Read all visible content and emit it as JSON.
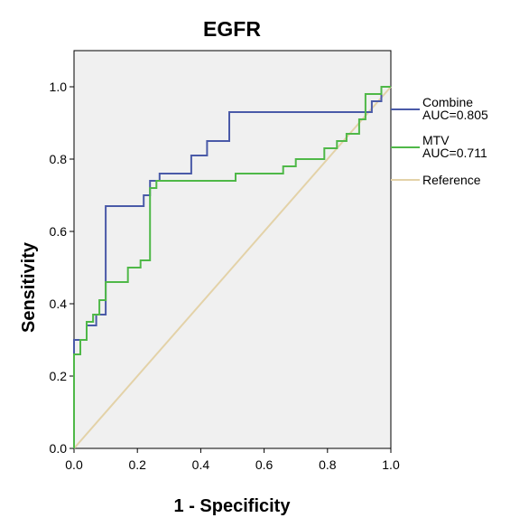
{
  "chart_data": {
    "type": "line",
    "title": "EGFR",
    "xlabel": "1 - Specificity",
    "ylabel": "Sensitivity",
    "xlim": [
      0,
      1
    ],
    "ylim": [
      0,
      1.1
    ],
    "xticks": [
      "0.0",
      "0.2",
      "0.4",
      "0.6",
      "0.8",
      "1.0"
    ],
    "yticks": [
      "0.0",
      "0.2",
      "0.4",
      "0.6",
      "0.8",
      "1.0"
    ],
    "grid": false,
    "background": "#f0f0f0",
    "legend_position": "right",
    "series": [
      {
        "name": "Combine",
        "auc_label": "AUC=0.805",
        "color": "#4a5aa8",
        "step": true,
        "x": [
          0,
          0,
          0.04,
          0.04,
          0.07,
          0.07,
          0.1,
          0.1,
          0.22,
          0.22,
          0.24,
          0.24,
          0.27,
          0.27,
          0.37,
          0.37,
          0.42,
          0.42,
          0.49,
          0.49,
          0.65,
          0.94,
          0.94,
          0.97,
          0.97,
          1.0
        ],
        "y": [
          0,
          0.3,
          0.3,
          0.34,
          0.34,
          0.37,
          0.37,
          0.67,
          0.67,
          0.7,
          0.7,
          0.74,
          0.74,
          0.76,
          0.76,
          0.81,
          0.81,
          0.85,
          0.85,
          0.93,
          0.93,
          0.93,
          0.96,
          0.96,
          1.0,
          1.0
        ]
      },
      {
        "name": "MTV",
        "auc_label": "AUC=0.711",
        "color": "#4fb848",
        "step": true,
        "x": [
          0,
          0,
          0.02,
          0.02,
          0.04,
          0.04,
          0.06,
          0.06,
          0.08,
          0.08,
          0.1,
          0.1,
          0.17,
          0.17,
          0.21,
          0.21,
          0.24,
          0.24,
          0.26,
          0.26,
          0.35,
          0.35,
          0.51,
          0.51,
          0.66,
          0.66,
          0.7,
          0.7,
          0.79,
          0.79,
          0.83,
          0.83,
          0.86,
          0.86,
          0.9,
          0.9,
          0.92,
          0.92,
          0.97,
          0.97,
          1.0
        ],
        "y": [
          0,
          0.26,
          0.26,
          0.3,
          0.3,
          0.35,
          0.35,
          0.37,
          0.37,
          0.41,
          0.41,
          0.46,
          0.46,
          0.5,
          0.5,
          0.52,
          0.52,
          0.72,
          0.72,
          0.74,
          0.74,
          0.74,
          0.74,
          0.76,
          0.76,
          0.78,
          0.78,
          0.8,
          0.8,
          0.83,
          0.83,
          0.85,
          0.85,
          0.87,
          0.87,
          0.91,
          0.91,
          0.98,
          0.98,
          1.0,
          1.0
        ]
      },
      {
        "name": "Reference",
        "color": "#e3d2a8",
        "step": false,
        "x": [
          0,
          1
        ],
        "y": [
          0,
          1
        ]
      }
    ]
  }
}
